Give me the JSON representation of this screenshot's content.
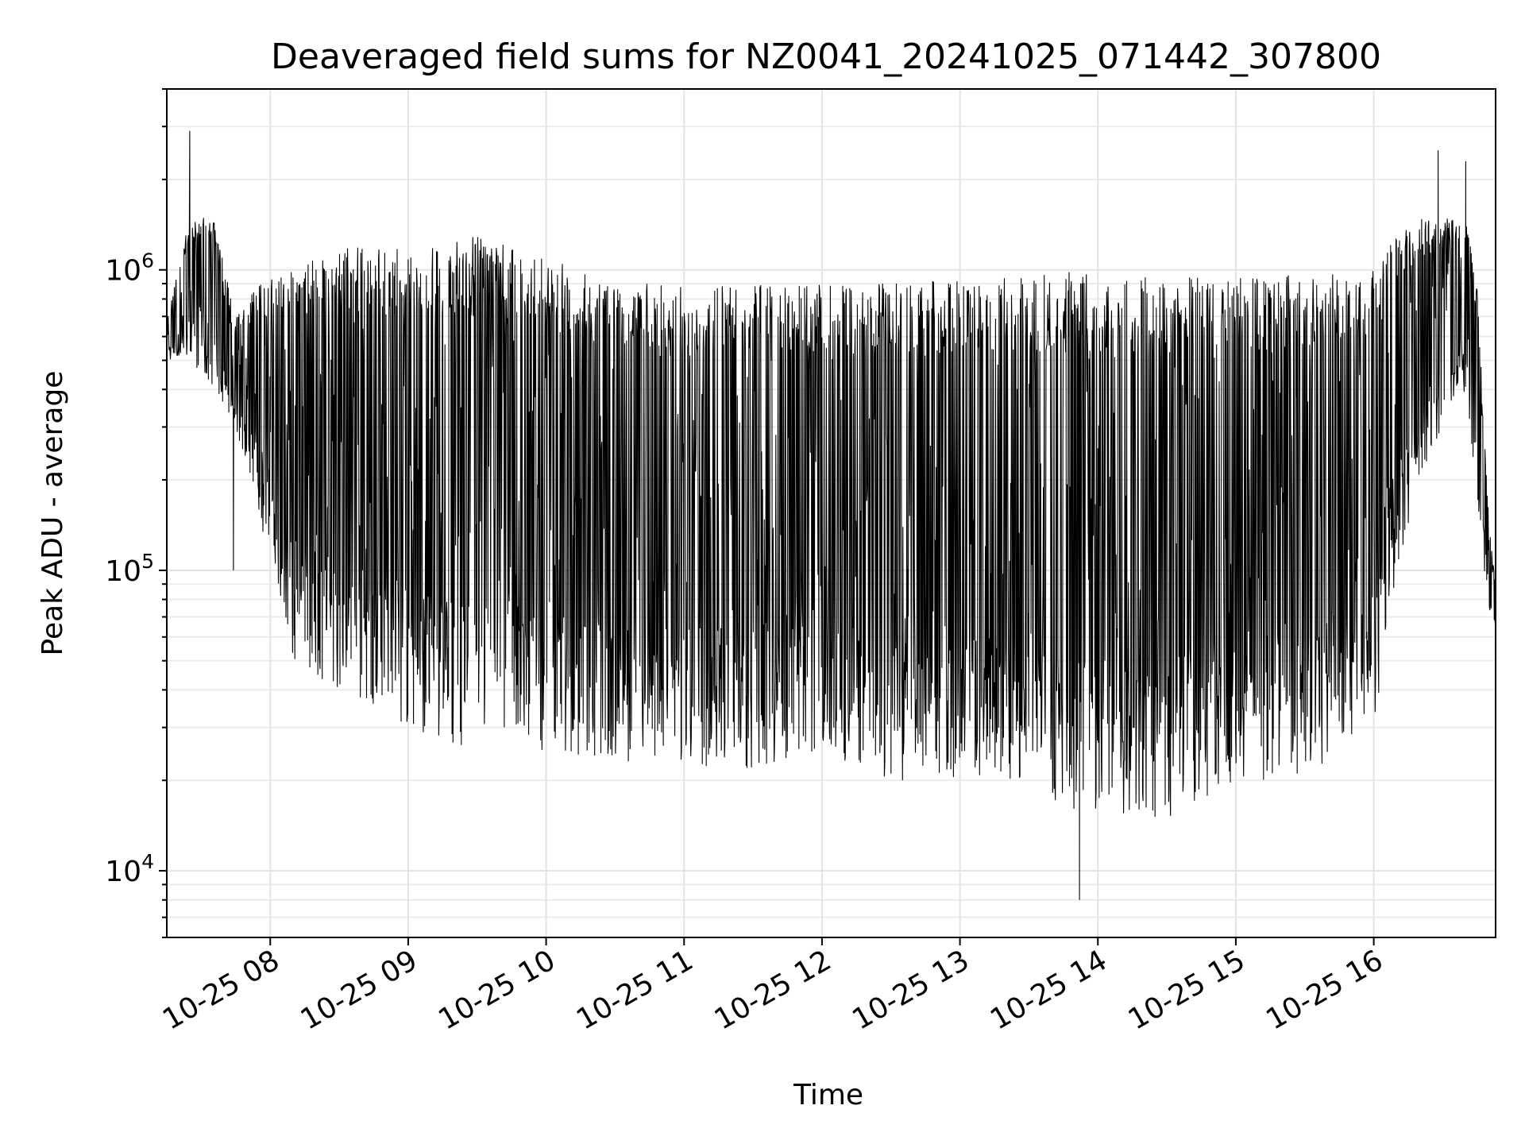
{
  "chart_data": {
    "type": "line",
    "title": "Deaveraged field sums for NZ0041_20241025_071442_307800",
    "xlabel": "Time",
    "ylabel": "Peak ADU - average",
    "yscale": "log",
    "ylim": [
      6000,
      4000000
    ],
    "xlim": [
      "2024-10-25 07:15",
      "2024-10-25 16:53"
    ],
    "grid": true,
    "x_tick_labels": [
      "10-25 08",
      "10-25 09",
      "10-25 10",
      "10-25 11",
      "10-25 12",
      "10-25 13",
      "10-25 14",
      "10-25 15",
      "10-25 16"
    ],
    "y_tick_labels": [
      {
        "base": "10",
        "exp": "4",
        "value": 10000
      },
      {
        "base": "10",
        "exp": "5",
        "value": 100000
      },
      {
        "base": "10",
        "exp": "6",
        "value": 1000000
      }
    ],
    "envelope": {
      "time": [
        "2024-10-25 07:15",
        "2024-10-25 07:25",
        "2024-10-25 07:35",
        "2024-10-25 07:45",
        "2024-10-25 07:55",
        "2024-10-25 08:10",
        "2024-10-25 08:30",
        "2024-10-25 09:00",
        "2024-10-25 09:30",
        "2024-10-25 10:00",
        "2024-10-25 10:30",
        "2024-10-25 11:00",
        "2024-10-25 11:30",
        "2024-10-25 12:00",
        "2024-10-25 12:30",
        "2024-10-25 13:00",
        "2024-10-25 13:30",
        "2024-10-25 13:50",
        "2024-10-25 14:00",
        "2024-10-25 14:30",
        "2024-10-25 15:00",
        "2024-10-25 15:30",
        "2024-10-25 16:00",
        "2024-10-25 16:10",
        "2024-10-25 16:20",
        "2024-10-25 16:30",
        "2024-10-25 16:40",
        "2024-10-25 16:45",
        "2024-10-25 16:50",
        "2024-10-25 16:53"
      ],
      "low": [
        500000,
        500000,
        400000,
        300000,
        150000,
        50000,
        40000,
        30000,
        25000,
        25000,
        22000,
        22000,
        22000,
        25000,
        20000,
        20000,
        20000,
        15000,
        15000,
        15000,
        20000,
        20000,
        30000,
        100000,
        200000,
        300000,
        400000,
        150000,
        70000,
        60000
      ],
      "high": [
        700000,
        1500000,
        1500000,
        700000,
        900000,
        1000000,
        1200000,
        1200000,
        1300000,
        1100000,
        900000,
        900000,
        900000,
        900000,
        900000,
        950000,
        950000,
        1000000,
        950000,
        950000,
        950000,
        1000000,
        1000000,
        1300000,
        1500000,
        1500000,
        1500000,
        900000,
        150000,
        90000
      ]
    },
    "notable_points": [
      {
        "time": "2024-10-25 07:25",
        "value": 2900000
      },
      {
        "time": "2024-10-25 16:28",
        "value": 2500000
      },
      {
        "time": "2024-10-25 16:40",
        "value": 2300000
      },
      {
        "time": "2024-10-25 13:52",
        "value": 8000
      },
      {
        "time": "2024-10-25 07:44",
        "value": 100000
      }
    ]
  }
}
